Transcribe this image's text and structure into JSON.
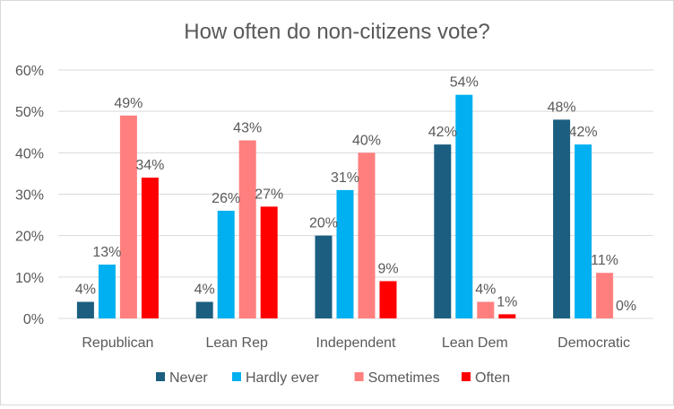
{
  "chart_data": {
    "type": "bar",
    "title": "How often do non-citizens vote?",
    "categories": [
      "Republican",
      "Lean Rep",
      "Independent",
      "Lean Dem",
      "Democratic"
    ],
    "series": [
      {
        "name": "Never",
        "color": "#1B5E80",
        "values": [
          4,
          4,
          20,
          42,
          48
        ]
      },
      {
        "name": "Hardly ever",
        "color": "#00B0F0",
        "values": [
          13,
          26,
          31,
          54,
          42
        ]
      },
      {
        "name": "Sometimes",
        "color": "#FF7F7F",
        "values": [
          49,
          43,
          40,
          4,
          11
        ]
      },
      {
        "name": "Often",
        "color": "#FF0000",
        "values": [
          34,
          27,
          9,
          1,
          0
        ]
      }
    ],
    "yticks": [
      "0%",
      "10%",
      "20%",
      "30%",
      "40%",
      "50%",
      "60%"
    ],
    "ylim": [
      0,
      60
    ],
    "yunit": "%",
    "grid": true,
    "legend": "bottom",
    "gridcolor": "#d9d9d9"
  }
}
